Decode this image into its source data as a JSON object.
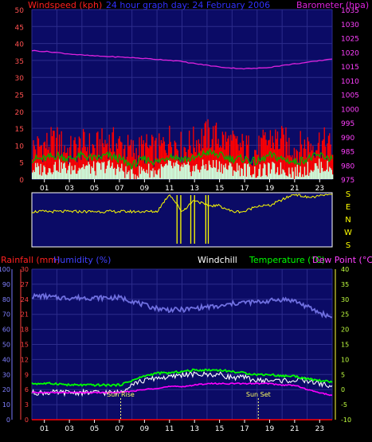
{
  "header": {
    "windspeed_label": "Windspeed (kph)",
    "center_label": "24 hour graph day:  24 February 2006",
    "barometer_label": "Barometer (hpa)"
  },
  "colors": {
    "background": "#000000",
    "plot_bg": "#0b0b66",
    "grid": "#2c2c8c",
    "wind_gust": "#ff0000",
    "wind_avg": "#00b000",
    "wind_low": "#ccffdd",
    "barometer": "#dd22dd",
    "direction": "#ffff00",
    "rain": "#ff0000",
    "humidity": "#6f6fe0",
    "windchill": "#ffffff",
    "temperature": "#00ff00",
    "dew_point": "#ff00ff",
    "left_axis": "#ff4040",
    "right_axis": "#ffff40",
    "humidity_axis": "#7777ff"
  },
  "time_ticks": [
    "01",
    "03",
    "05",
    "07",
    "09",
    "11",
    "13",
    "15",
    "17",
    "19",
    "21",
    "23"
  ],
  "direction_labels": [
    "S",
    "E",
    "N",
    "W",
    "S"
  ],
  "lower_header": {
    "rainfall_label": "Rainfall (mm)",
    "humidity_label": "Humidity (%)",
    "windchill_label": "Windchill",
    "temperature_label": "Temperature (°C)",
    "dewpoint_label": "Dew Point (°C)"
  },
  "annotations": {
    "sunrise": "Sun Rise",
    "sunset": "Sun Set"
  },
  "chart_data": [
    {
      "type": "line",
      "x": [
        0,
        1,
        2,
        3,
        4,
        5,
        6,
        7,
        8,
        9,
        10,
        11,
        12,
        13,
        14,
        15,
        16,
        17,
        18,
        19,
        20,
        21,
        22,
        23,
        24
      ],
      "series": [
        {
          "name": "Windspeed (kph)",
          "axis": "left",
          "values": [
            9,
            10,
            11,
            8,
            10,
            9,
            11,
            10,
            8,
            9,
            8,
            12,
            9,
            11,
            13,
            12,
            10,
            9,
            8,
            12,
            11,
            9,
            10,
            11,
            9
          ]
        },
        {
          "name": "Windspeed (kph)",
          "axis": "left",
          "values": [
            6,
            6,
            7,
            6,
            7,
            6,
            7,
            6,
            4,
            6,
            5,
            7,
            6,
            6,
            8,
            7,
            6,
            6,
            5,
            7,
            6,
            5,
            6,
            7,
            6
          ]
        },
        {
          "name": "Windspeed (kph)",
          "axis": "left",
          "values": [
            3,
            3,
            4,
            3,
            4,
            3,
            4,
            3,
            1,
            3,
            2,
            4,
            3,
            3,
            4,
            4,
            3,
            3,
            2,
            3,
            3,
            2,
            3,
            4,
            3
          ]
        },
        {
          "name": "Barometer (hpa)",
          "axis": "right",
          "values": [
            1020.5,
            1020.2,
            1019.8,
            1019.3,
            1018.9,
            1018.6,
            1018.4,
            1018.2,
            1018.0,
            1017.7,
            1017.4,
            1017.1,
            1016.6,
            1015.9,
            1015.3,
            1014.7,
            1014.3,
            1014.1,
            1014.2,
            1014.6,
            1015.2,
            1015.8,
            1016.3,
            1016.9,
            1017.6
          ]
        }
      ],
      "x_ticks": [
        "01",
        "03",
        "05",
        "07",
        "09",
        "11",
        "13",
        "15",
        "17",
        "19",
        "21",
        "23"
      ],
      "ylim_left": [
        0,
        50
      ],
      "ylim_right": [
        975,
        1035
      ],
      "y_ticks_left": [
        0,
        5,
        10,
        15,
        20,
        25,
        30,
        35,
        40,
        45,
        50
      ],
      "y_ticks_right": [
        975,
        980,
        985,
        990,
        995,
        1000,
        1005,
        1010,
        1015,
        1020,
        1025,
        1030,
        1035
      ],
      "grid": true
    },
    {
      "type": "line",
      "x": [
        0,
        1,
        2,
        3,
        4,
        5,
        6,
        7,
        8,
        9,
        10,
        11,
        12,
        13,
        14,
        15,
        16,
        17,
        18,
        19,
        20,
        21,
        22,
        23,
        24
      ],
      "series": [
        {
          "values": [
            3.0,
            3.0,
            3.0,
            3.0,
            3.0,
            3.0,
            3.0,
            3.0,
            3.0,
            3.0,
            3.0,
            4.5,
            3.0,
            4.0,
            3.5,
            3.5,
            3.0,
            3.0,
            3.5,
            3.5,
            4.0,
            4.5,
            4.2,
            4.3,
            4.6
          ]
        }
      ],
      "y_categories": [
        "S",
        "E",
        "N",
        "W",
        "S"
      ]
    },
    {
      "type": "line",
      "x": [
        0,
        1,
        2,
        3,
        4,
        5,
        6,
        7,
        8,
        9,
        10,
        11,
        12,
        13,
        14,
        15,
        16,
        17,
        18,
        19,
        20,
        21,
        22,
        23,
        24
      ],
      "series": [
        {
          "name": "Rainfall (mm)",
          "axis": "rain",
          "values": [
            0,
            0,
            0,
            0,
            0,
            0,
            0,
            0,
            0,
            0,
            0,
            0,
            0,
            0,
            0,
            0,
            0,
            0,
            0,
            0,
            0,
            0,
            0,
            0,
            0
          ]
        },
        {
          "name": "Humidity (%)",
          "axis": "humidity",
          "values": [
            82,
            82,
            81,
            81,
            81,
            81,
            81,
            81,
            79,
            76,
            74,
            73,
            73,
            74,
            75,
            75,
            77,
            78,
            78,
            79,
            80,
            79,
            75,
            71,
            68
          ]
        },
        {
          "name": "Windchill",
          "axis": "temp",
          "values": [
            -1,
            -1,
            -1,
            -1,
            -1,
            -1,
            -1,
            -1,
            2,
            3,
            4,
            4,
            5,
            5,
            5,
            5,
            4,
            4,
            3,
            3,
            3,
            3,
            3,
            2,
            1
          ]
        },
        {
          "name": "Temperature (°C)",
          "axis": "temp",
          "values": [
            2,
            2,
            2,
            1.5,
            1.5,
            1.5,
            1.5,
            1.5,
            3,
            4.5,
            5.5,
            5.5,
            6,
            6.5,
            6.5,
            6.5,
            6,
            5.5,
            5,
            5,
            4.5,
            4.5,
            3.5,
            3,
            2.5
          ]
        },
        {
          "name": "Dew Point (°C)",
          "axis": "temp",
          "values": [
            -1,
            -1,
            -1,
            -1,
            -1,
            -1,
            -1,
            -1,
            -0.5,
            0,
            0.5,
            1,
            1,
            1.5,
            2,
            2,
            2,
            2,
            2,
            2,
            1.5,
            1.5,
            0,
            -1,
            -2
          ]
        }
      ],
      "x_ticks": [
        "01",
        "03",
        "05",
        "07",
        "09",
        "11",
        "13",
        "15",
        "17",
        "19",
        "21",
        "23"
      ],
      "ylim_rain": [
        0,
        30
      ],
      "ylim_humidity": [
        0,
        100
      ],
      "ylim_temp": [
        -10,
        40
      ],
      "y_ticks_rain": [
        0,
        3,
        6,
        9,
        12,
        15,
        18,
        21,
        24,
        27,
        30
      ],
      "y_ticks_humidity": [
        0,
        10,
        20,
        30,
        40,
        50,
        60,
        70,
        80,
        90,
        100
      ],
      "y_ticks_temp": [
        -10,
        -5,
        0,
        5,
        10,
        15,
        20,
        25,
        30,
        35,
        40
      ],
      "markers": [
        {
          "label": "Sun Rise",
          "x": 7.1
        },
        {
          "label": "Sun Set",
          "x": 18.1
        }
      ],
      "grid": true
    }
  ]
}
